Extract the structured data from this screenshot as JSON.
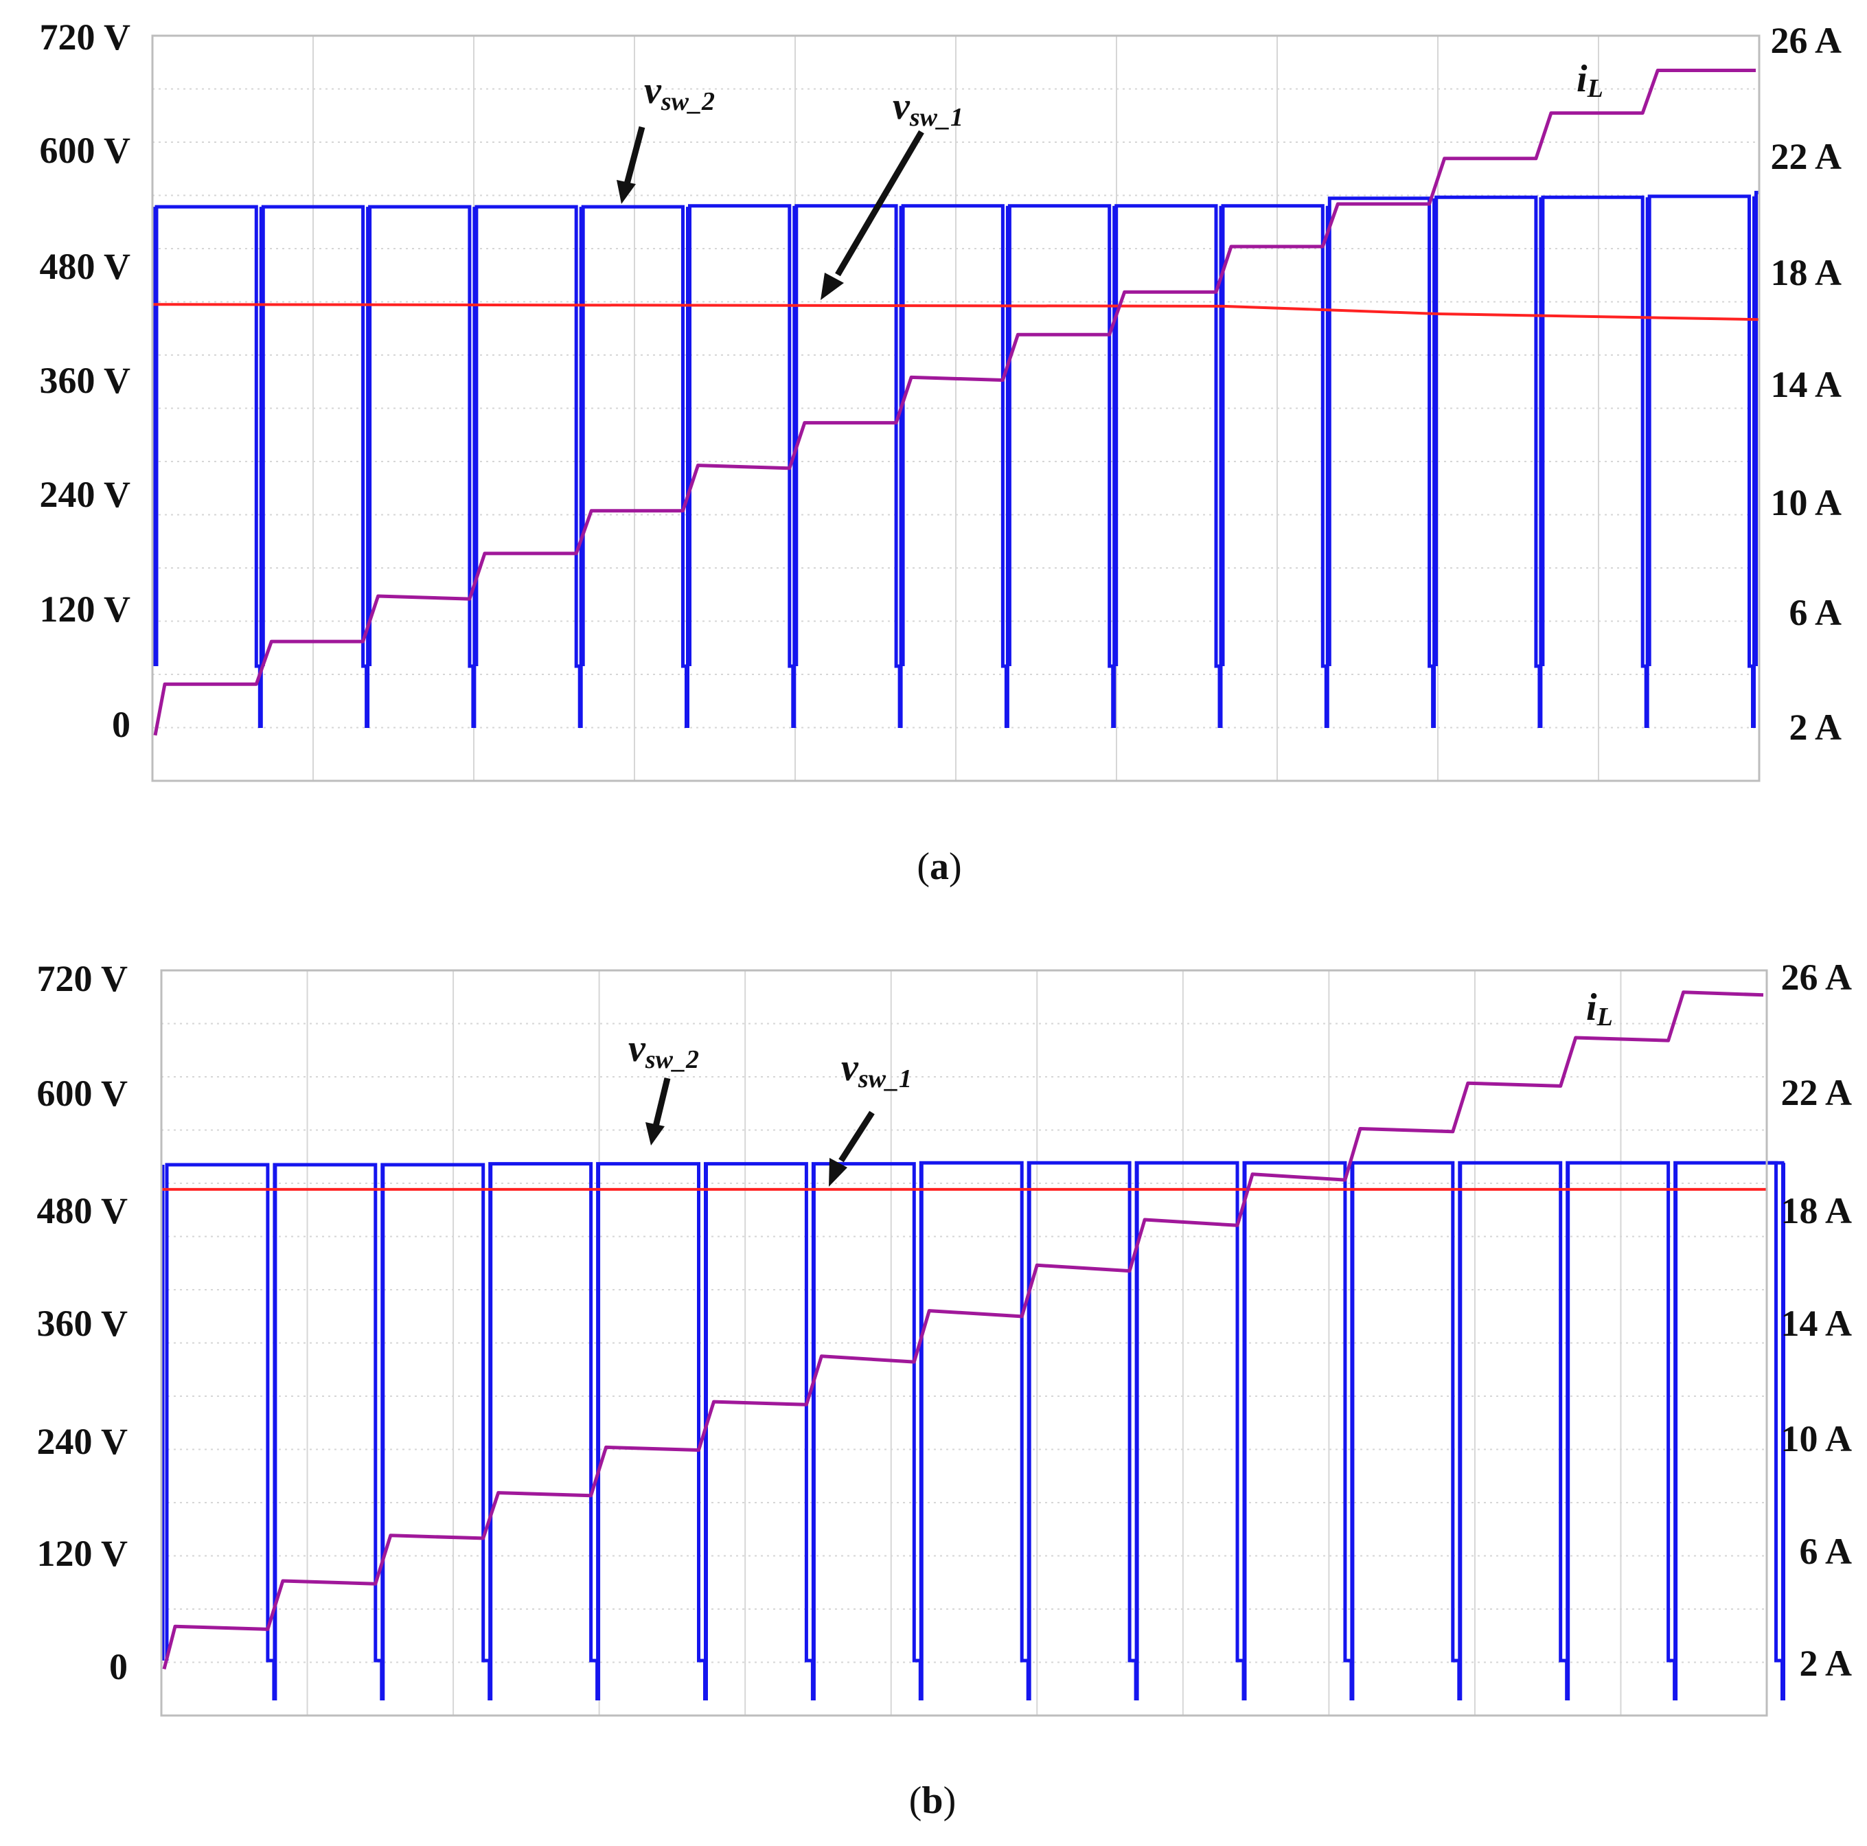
{
  "colors": {
    "vsw2": "#1515ee",
    "vsw1": "#ff2222",
    "iL": "#a0189a",
    "grid": "#d6d6d6",
    "frame": "#bdbdbd",
    "text": "#111111"
  },
  "chart_data": [
    {
      "type": "line",
      "panel_label": "a",
      "y_left": {
        "unit": "V",
        "ticks": [
          "720 V",
          "600 V",
          "480 V",
          "360 V",
          "240 V",
          "120 V",
          "0"
        ],
        "values": [
          720,
          600,
          480,
          360,
          240,
          120,
          0
        ],
        "range": [
          -60,
          720
        ]
      },
      "y_right": {
        "unit": "A",
        "ticks": [
          "26 A",
          "22 A",
          "18 A",
          "14 A",
          "10 A",
          "6 A",
          "2 A"
        ],
        "values": [
          26,
          22,
          18,
          14,
          10,
          6,
          2
        ],
        "range": [
          0,
          26
        ]
      },
      "x_range": [
        0,
        15
      ],
      "labels": {
        "vsw2": {
          "main": "v",
          "sub": "sw_2"
        },
        "vsw1": {
          "main": "v",
          "sub": "sw_1"
        },
        "iL": {
          "main": "i",
          "sub": "L"
        }
      },
      "series": [
        {
          "name": "v_sw_2",
          "axis": "left",
          "pattern": "switching",
          "high_levels": [
            543,
            543,
            543,
            543,
            543,
            544,
            544,
            544,
            544,
            544,
            544,
            552,
            553,
            553,
            554,
            558
          ],
          "low_level": 58
        },
        {
          "name": "v_sw_1",
          "axis": "left",
          "pattern": "dc",
          "x": [
            0,
            5,
            10,
            12,
            15
          ],
          "values": [
            440,
            439,
            438,
            430,
            424
          ]
        },
        {
          "name": "i_L",
          "axis": "right",
          "pattern": "staircase",
          "start_value": 1.5,
          "plateau_start": [
            3.3,
            4.8,
            6.4,
            7.9,
            9.4,
            11.0,
            12.5,
            14.1,
            15.6,
            17.1,
            18.7,
            20.2,
            21.8,
            23.4,
            24.9
          ],
          "plateau_end": [
            3.3,
            4.8,
            6.3,
            7.9,
            9.4,
            10.9,
            12.5,
            14.0,
            15.6,
            17.1,
            18.7,
            20.2,
            21.8,
            23.4,
            24.9
          ]
        }
      ]
    },
    {
      "type": "line",
      "panel_label": "b",
      "y_left": {
        "unit": "V",
        "ticks": [
          "720 V",
          "600 V",
          "480 V",
          "360 V",
          "240 V",
          "120 V",
          "0"
        ],
        "values": [
          720,
          600,
          480,
          360,
          240,
          120,
          0
        ],
        "range": [
          -60,
          720
        ]
      },
      "y_right": {
        "unit": "A",
        "ticks": [
          "26 A",
          "22 A",
          "18 A",
          "14 A",
          "10 A",
          "6 A",
          "2 A"
        ],
        "values": [
          26,
          22,
          18,
          14,
          10,
          6,
          2
        ],
        "range": [
          0,
          26
        ]
      },
      "x_range": [
        0,
        15
      ],
      "labels": {
        "vsw2": {
          "main": "v",
          "sub": "sw_2"
        },
        "vsw1": {
          "main": "v",
          "sub": "sw_1"
        },
        "iL": {
          "main": "i",
          "sub": "L"
        }
      },
      "series": [
        {
          "name": "v_sw_2",
          "axis": "left",
          "pattern": "switching",
          "high_levels": [
            523,
            523,
            523,
            524,
            524,
            524,
            524,
            525,
            525,
            525,
            525,
            525,
            525,
            525,
            525,
            525
          ],
          "low_level": 0
        },
        {
          "name": "v_sw_1",
          "axis": "left",
          "pattern": "dc",
          "x": [
            0,
            15
          ],
          "values": [
            497,
            497
          ]
        },
        {
          "name": "i_L",
          "axis": "right",
          "pattern": "staircase",
          "start_value": 1.7,
          "plateau_start": [
            3.2,
            4.8,
            6.4,
            7.9,
            9.5,
            11.1,
            12.7,
            14.3,
            15.9,
            17.5,
            19.1,
            20.7,
            22.3,
            23.9,
            25.5
          ],
          "plateau_end": [
            3.1,
            4.7,
            6.3,
            7.8,
            9.4,
            11.0,
            12.5,
            14.1,
            15.7,
            17.3,
            18.9,
            20.6,
            22.2,
            23.8,
            25.4
          ]
        }
      ]
    }
  ]
}
